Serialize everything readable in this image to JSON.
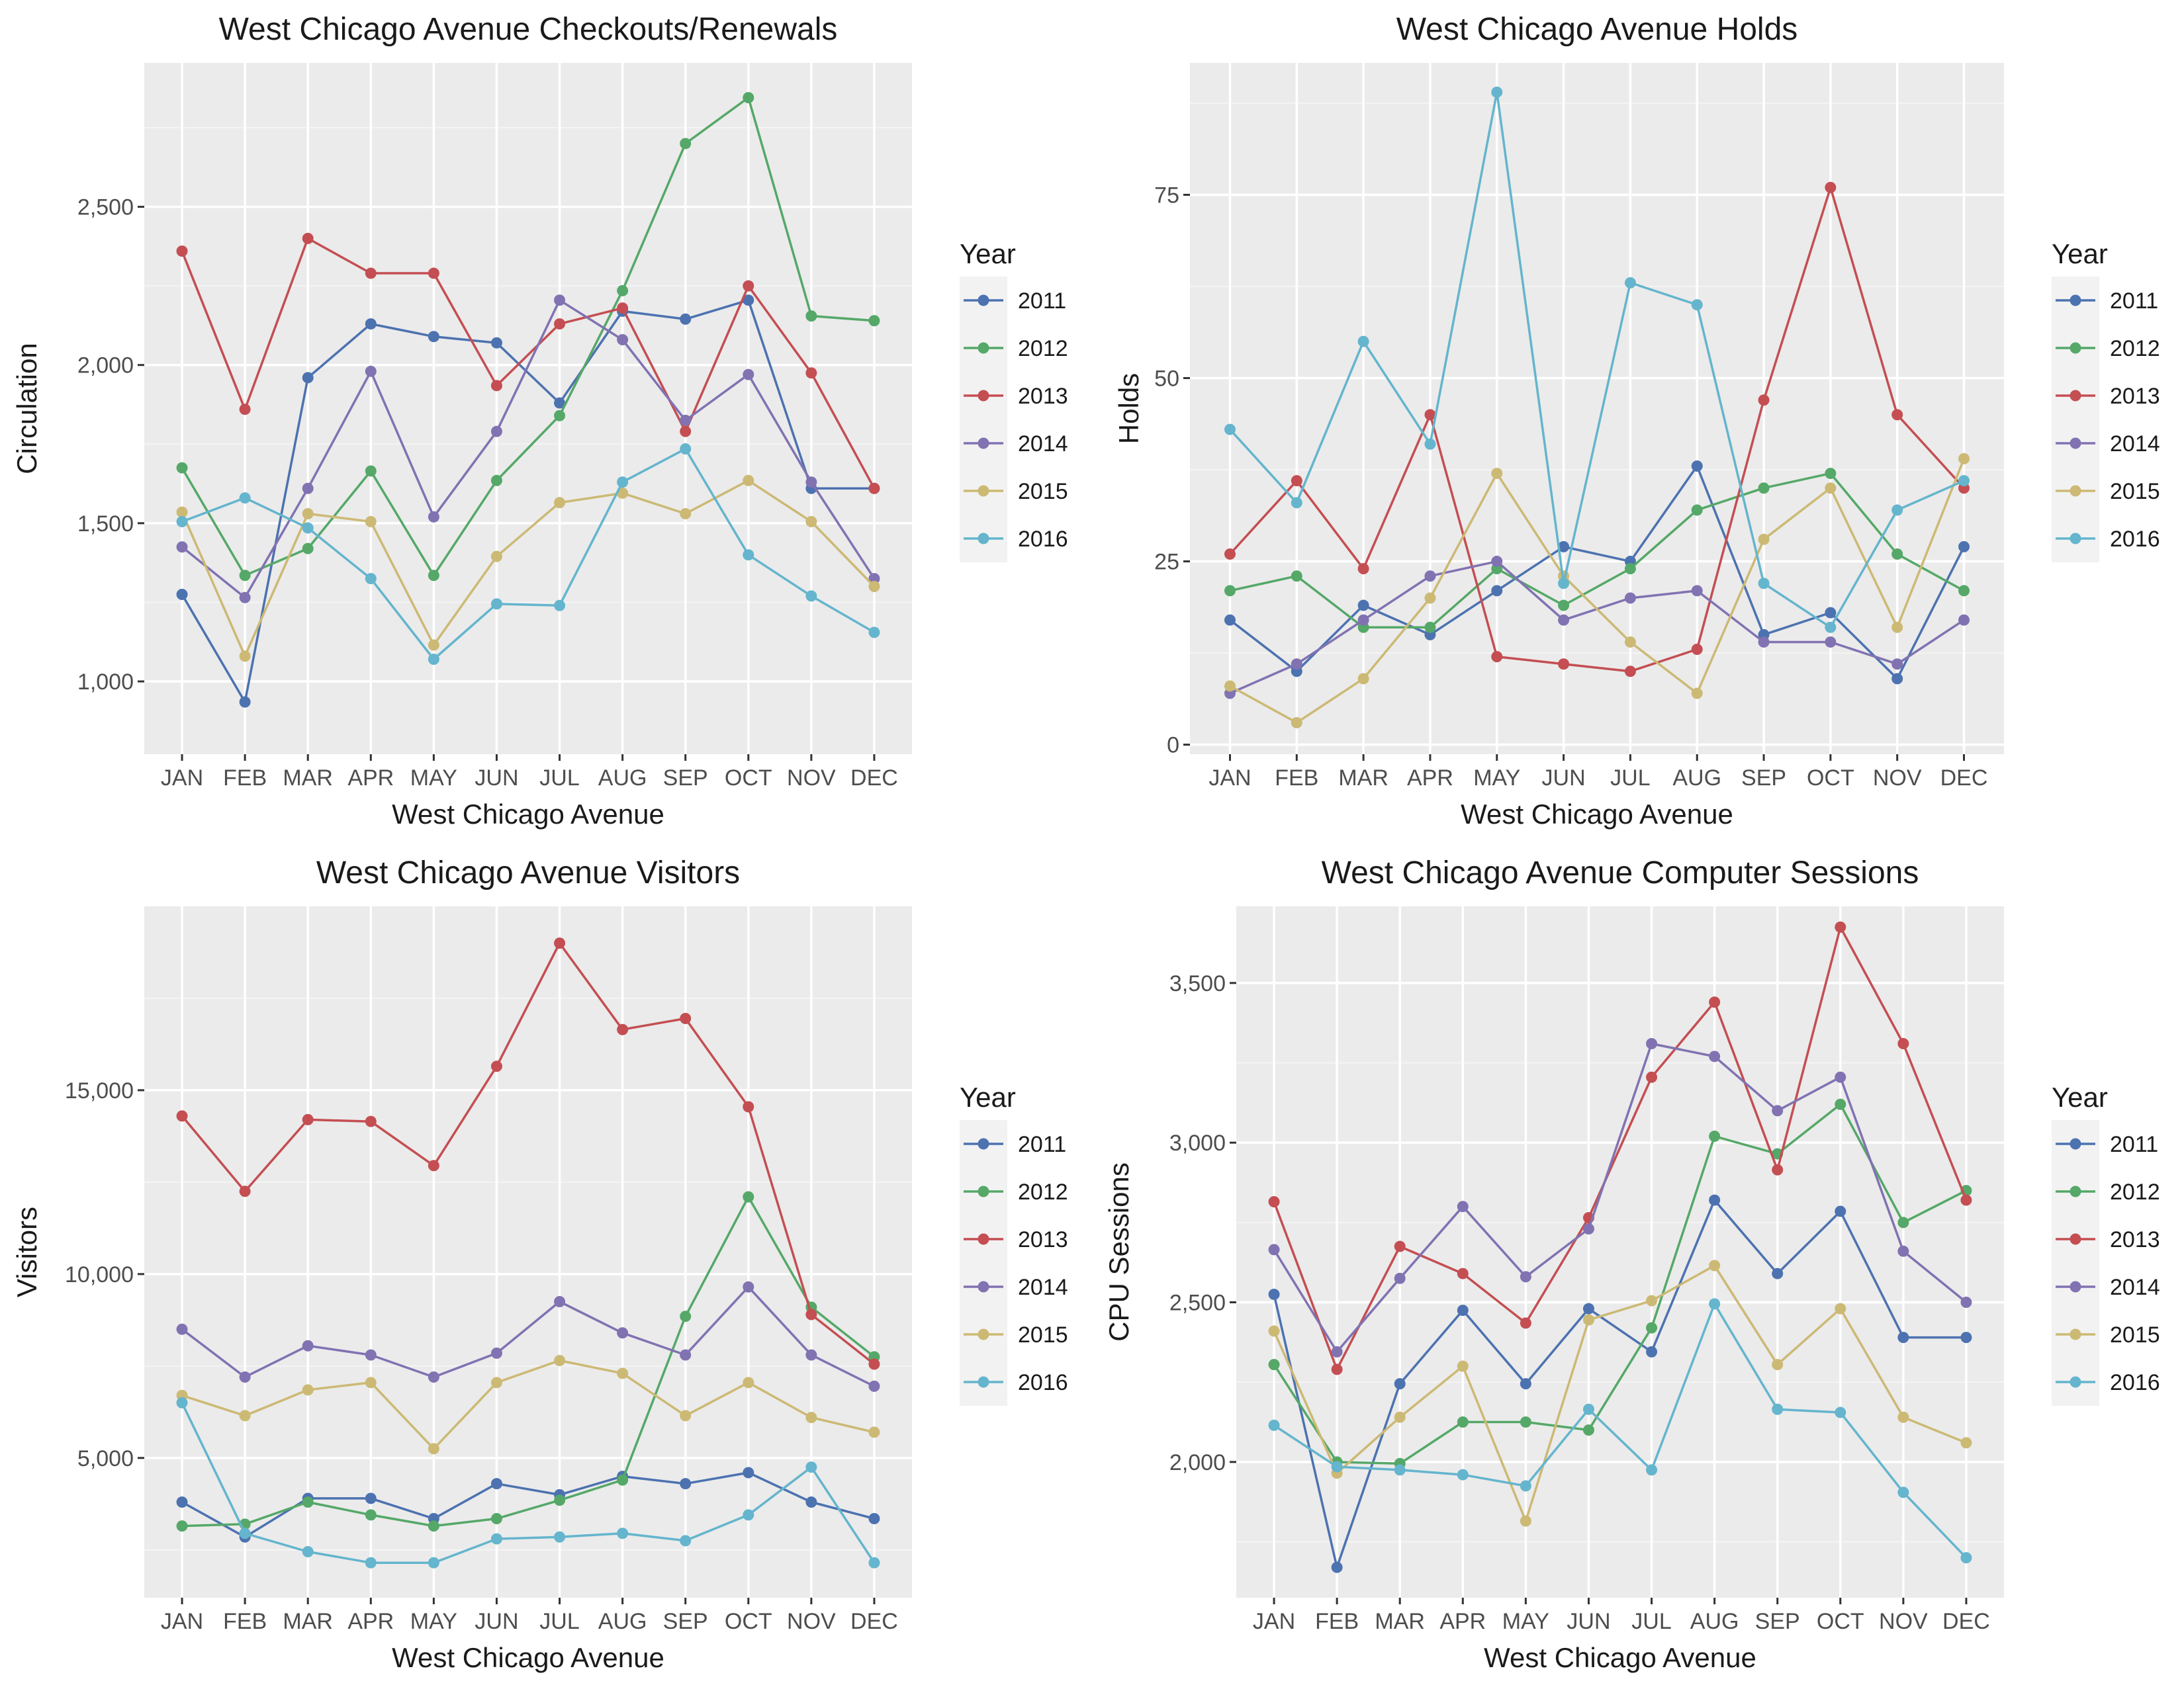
{
  "colors": {
    "2011": "#4C72B0",
    "2012": "#55A868",
    "2013": "#C44E52",
    "2014": "#8172B2",
    "2015": "#CCB974",
    "2016": "#64B5CD"
  },
  "chart_data": [
    {
      "type": "line",
      "title": "West Chicago Avenue Checkouts/Renewals",
      "xlabel": "West Chicago Avenue",
      "ylabel": "Circulation",
      "categories": [
        "JAN",
        "FEB",
        "MAR",
        "APR",
        "MAY",
        "JUN",
        "JUL",
        "AUG",
        "SEP",
        "OCT",
        "NOV",
        "DEC"
      ],
      "ylim": [
        770,
        2955
      ],
      "yticks": [
        1000,
        1500,
        2000,
        2500
      ],
      "ytick_labels": [
        "1,000",
        "1,500",
        "2,000",
        "2,500"
      ],
      "legend_title": "Year",
      "legend_position": "right",
      "grid": true,
      "series": [
        {
          "name": "2011",
          "values": [
            1275,
            935,
            1960,
            2130,
            2090,
            2070,
            1880,
            2170,
            2145,
            2205,
            1610,
            1610
          ]
        },
        {
          "name": "2012",
          "values": [
            1675,
            1335,
            1420,
            1665,
            1335,
            1635,
            1840,
            2235,
            2700,
            2845,
            2155,
            2140
          ]
        },
        {
          "name": "2013",
          "values": [
            2360,
            1860,
            2400,
            2290,
            2290,
            1935,
            2130,
            2180,
            1790,
            2250,
            1975,
            1610
          ]
        },
        {
          "name": "2014",
          "values": [
            1425,
            1265,
            1610,
            1980,
            1520,
            1790,
            2205,
            2080,
            1825,
            1970,
            1630,
            1325
          ]
        },
        {
          "name": "2015",
          "values": [
            1535,
            1080,
            1530,
            1505,
            1115,
            1395,
            1565,
            1595,
            1530,
            1635,
            1505,
            1300
          ]
        },
        {
          "name": "2016",
          "values": [
            1505,
            1580,
            1485,
            1325,
            1070,
            1245,
            1240,
            1630,
            1735,
            1400,
            1270,
            1155
          ]
        }
      ]
    },
    {
      "type": "line",
      "title": "West Chicago Avenue Holds",
      "xlabel": "West Chicago Avenue",
      "ylabel": "Holds",
      "categories": [
        "JAN",
        "FEB",
        "MAR",
        "APR",
        "MAY",
        "JUN",
        "JUL",
        "AUG",
        "SEP",
        "OCT",
        "NOV",
        "DEC"
      ],
      "ylim": [
        -1.3,
        93
      ],
      "yticks": [
        0,
        25,
        50,
        75
      ],
      "ytick_labels": [
        "0",
        "25",
        "50",
        "75"
      ],
      "legend_title": "Year",
      "legend_position": "right",
      "grid": true,
      "series": [
        {
          "name": "2011",
          "values": [
            17,
            10,
            19,
            15,
            21,
            27,
            25,
            38,
            15,
            18,
            9,
            27
          ]
        },
        {
          "name": "2012",
          "values": [
            21,
            23,
            16,
            16,
            24,
            19,
            24,
            32,
            35,
            37,
            26,
            21
          ]
        },
        {
          "name": "2013",
          "values": [
            26,
            36,
            24,
            45,
            12,
            11,
            10,
            13,
            47,
            76,
            45,
            35
          ]
        },
        {
          "name": "2014",
          "values": [
            7,
            11,
            17,
            23,
            25,
            17,
            20,
            21,
            14,
            14,
            11,
            17
          ]
        },
        {
          "name": "2015",
          "values": [
            8,
            3,
            9,
            20,
            37,
            23,
            14,
            7,
            28,
            35,
            16,
            39
          ]
        },
        {
          "name": "2016",
          "values": [
            43,
            33,
            55,
            41,
            89,
            22,
            63,
            60,
            22,
            16,
            32,
            36
          ]
        }
      ]
    },
    {
      "type": "line",
      "title": "West Chicago Avenue Visitors",
      "xlabel": "West Chicago Avenue",
      "ylabel": "Visitors",
      "categories": [
        "JAN",
        "FEB",
        "MAR",
        "APR",
        "MAY",
        "JUN",
        "JUL",
        "AUG",
        "SEP",
        "OCT",
        "NOV",
        "DEC"
      ],
      "ylim": [
        1200,
        20000
      ],
      "yticks": [
        5000,
        10000,
        15000
      ],
      "ytick_labels": [
        "5,000",
        "10,000",
        "15,000"
      ],
      "legend_title": "Year",
      "legend_position": "right",
      "grid": true,
      "series": [
        {
          "name": "2011",
          "values": [
            3800,
            2850,
            3900,
            3900,
            3350,
            4300,
            4000,
            4500,
            4300,
            4600,
            3800,
            3350
          ]
        },
        {
          "name": "2012",
          "values": [
            3150,
            3200,
            3800,
            3450,
            3150,
            3350,
            3850,
            4400,
            8850,
            12100,
            9100,
            7750
          ]
        },
        {
          "name": "2013",
          "values": [
            14300,
            12250,
            14200,
            14150,
            12950,
            15650,
            19000,
            16650,
            16950,
            14550,
            8900,
            7550
          ]
        },
        {
          "name": "2014",
          "values": [
            8500,
            7200,
            8050,
            7800,
            7200,
            7850,
            9250,
            8400,
            7800,
            9650,
            7800,
            6950
          ]
        },
        {
          "name": "2015",
          "values": [
            6700,
            6150,
            6850,
            7050,
            5250,
            7050,
            7650,
            7300,
            6150,
            7050,
            6100,
            5700
          ]
        },
        {
          "name": "2016",
          "values": [
            6500,
            2950,
            2450,
            2150,
            2150,
            2800,
            2850,
            2950,
            2750,
            3450,
            4750,
            2150
          ]
        }
      ]
    },
    {
      "type": "line",
      "title": "West Chicago Avenue Computer Sessions",
      "xlabel": "West Chicago Avenue",
      "ylabel": "CPU Sessions",
      "categories": [
        "JAN",
        "FEB",
        "MAR",
        "APR",
        "MAY",
        "JUN",
        "JUL",
        "AUG",
        "SEP",
        "OCT",
        "NOV",
        "DEC"
      ],
      "ylim": [
        1575,
        3740
      ],
      "yticks": [
        2000,
        2500,
        3000,
        3500
      ],
      "ytick_labels": [
        "2,000",
        "2,500",
        "3,000",
        "3,500"
      ],
      "legend_title": "Year",
      "legend_position": "right",
      "grid": true,
      "series": [
        {
          "name": "2011",
          "values": [
            2525,
            1670,
            2245,
            2475,
            2245,
            2480,
            2345,
            2820,
            2590,
            2785,
            2390,
            2390
          ]
        },
        {
          "name": "2012",
          "values": [
            2305,
            2000,
            1995,
            2125,
            2125,
            2100,
            2420,
            3020,
            2965,
            3120,
            2750,
            2850
          ]
        },
        {
          "name": "2013",
          "values": [
            2815,
            2290,
            2675,
            2590,
            2435,
            2765,
            3205,
            3440,
            2915,
            3675,
            3310,
            2820
          ]
        },
        {
          "name": "2014",
          "values": [
            2665,
            2345,
            2575,
            2800,
            2580,
            2730,
            3310,
            3270,
            3100,
            3205,
            2660,
            2500
          ]
        },
        {
          "name": "2015",
          "values": [
            2410,
            1965,
            2140,
            2300,
            1815,
            2445,
            2505,
            2615,
            2305,
            2480,
            2140,
            2060
          ]
        },
        {
          "name": "2016",
          "values": [
            2115,
            1985,
            1975,
            1960,
            1925,
            2165,
            1975,
            2495,
            2165,
            2155,
            1905,
            1700
          ]
        }
      ]
    }
  ]
}
